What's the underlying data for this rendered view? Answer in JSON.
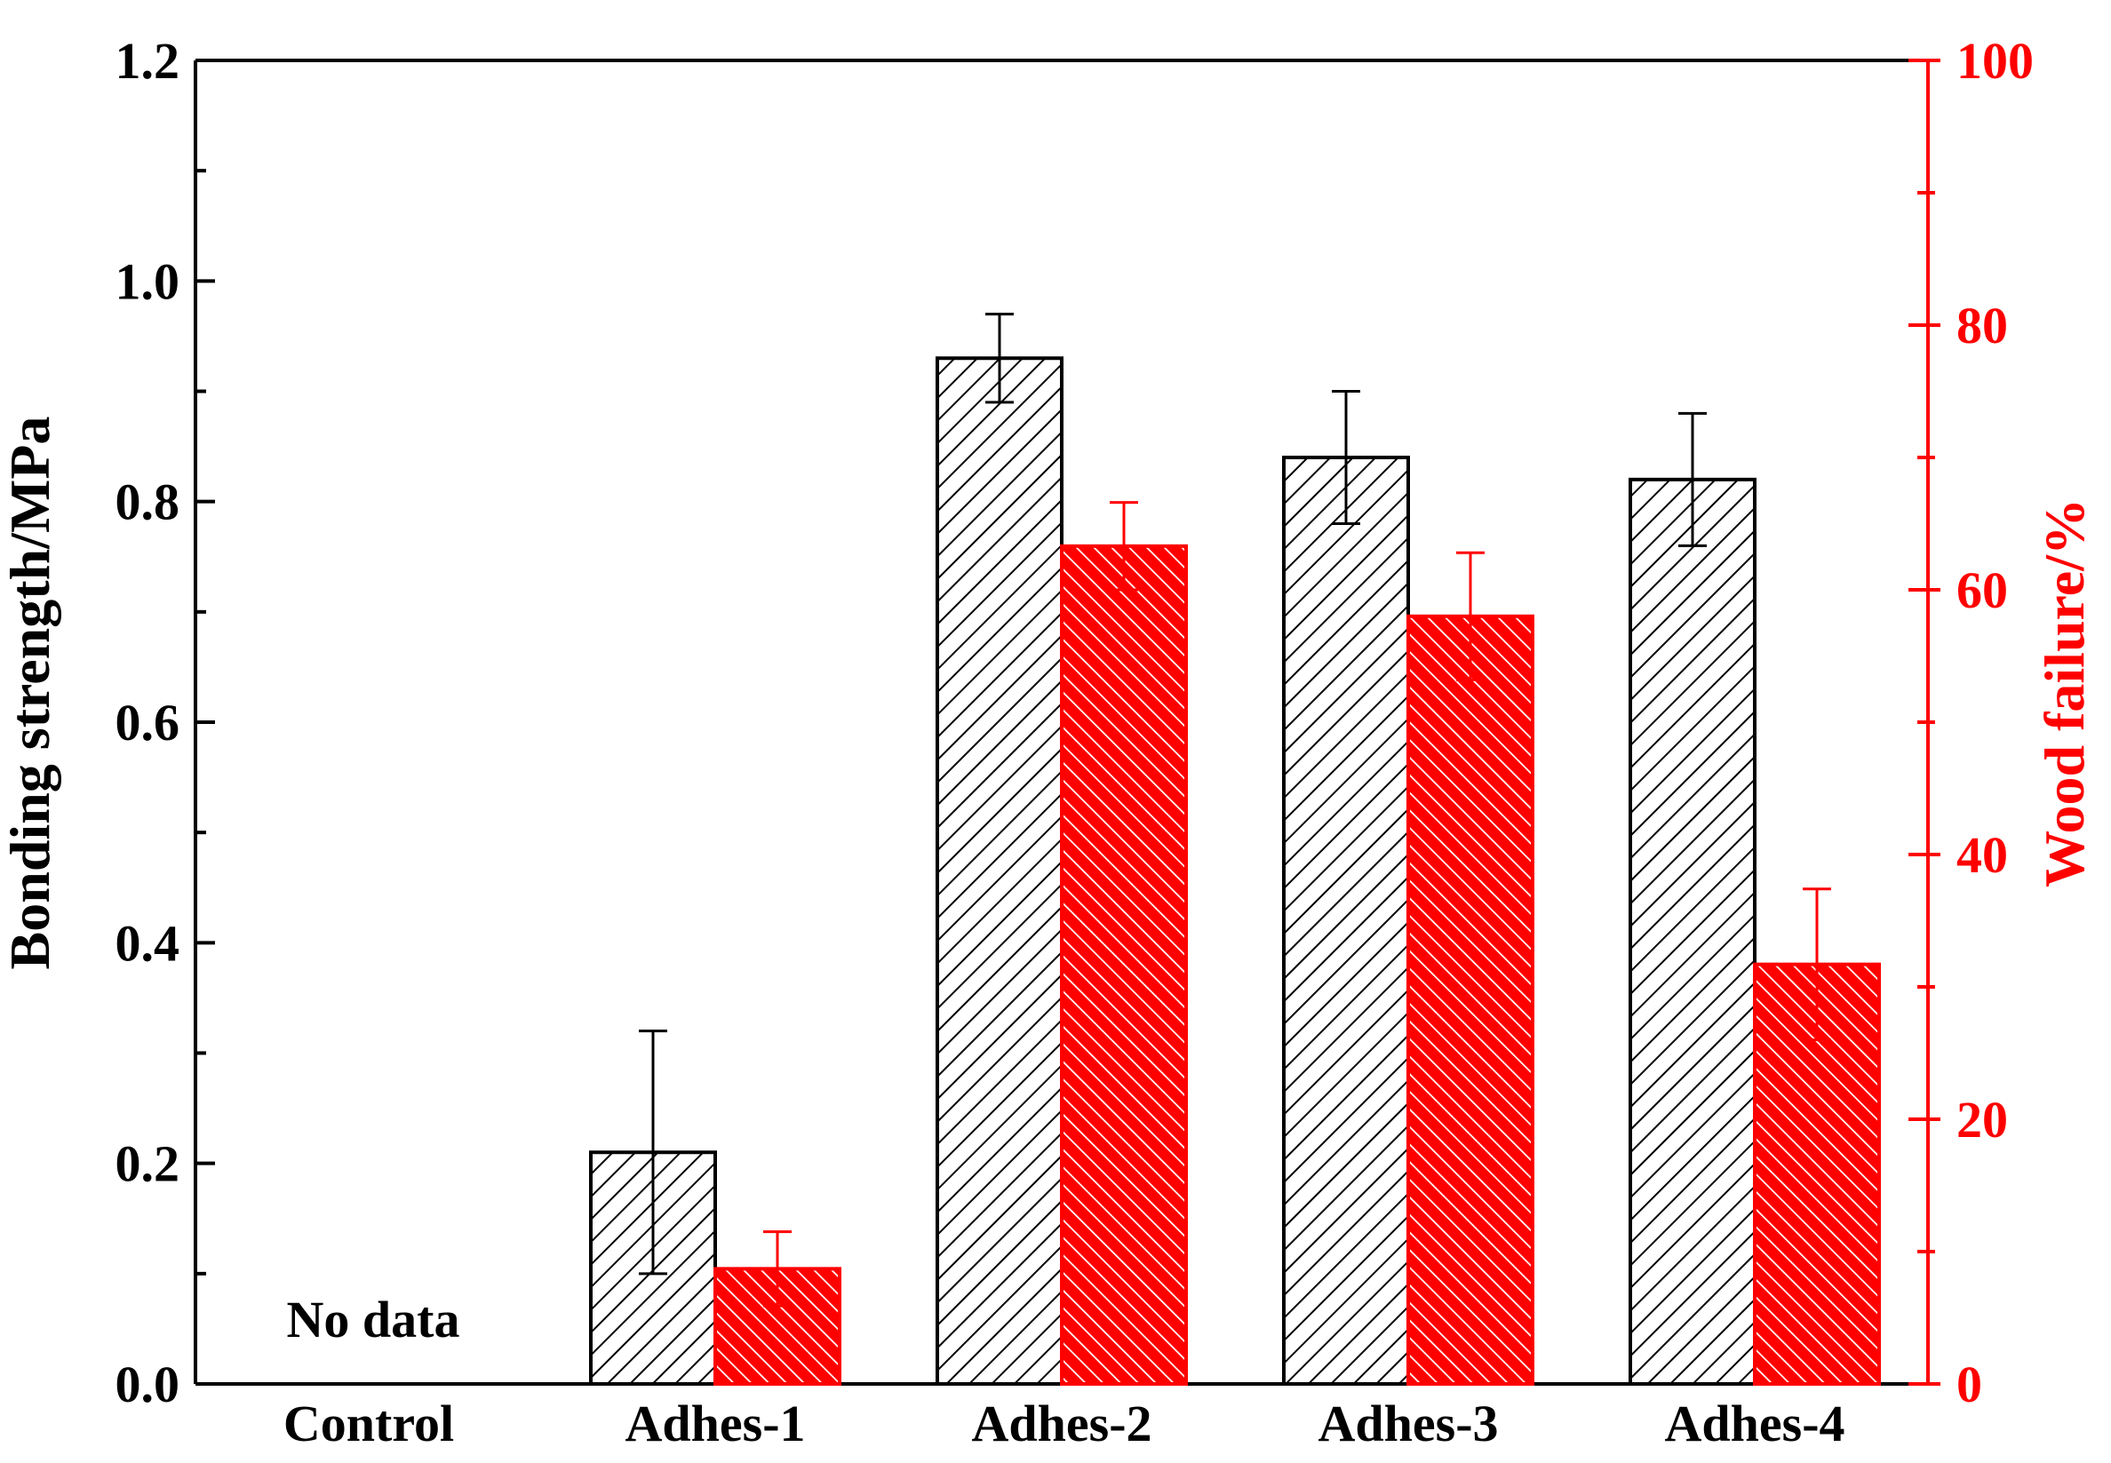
{
  "chart_data": {
    "type": "bar",
    "title": "",
    "categories": [
      "Control",
      "Adhes-1",
      "Adhes-2",
      "Adhes-3",
      "Adhes-4"
    ],
    "xlabel": "",
    "ylabel": "Bonding strength/MPa",
    "y2label": "Wood failure/%",
    "ylim": [
      0,
      1.2
    ],
    "y2lim": [
      0,
      100
    ],
    "yticks": [
      "0.0",
      "0.2",
      "0.4",
      "0.6",
      "0.8",
      "1.0",
      "1.2"
    ],
    "y2ticks": [
      "0",
      "20",
      "40",
      "60",
      "80",
      "100"
    ],
    "annotation": "No data",
    "series": [
      {
        "name": "Bonding strength",
        "axis": "left",
        "color": "#000000",
        "hatch": "forward-diagonal",
        "values": [
          null,
          0.21,
          0.93,
          0.84,
          0.82
        ],
        "errors": [
          null,
          0.11,
          0.04,
          0.06,
          0.06
        ]
      },
      {
        "name": "Wood failure",
        "axis": "right",
        "color": "#ff0000",
        "hatch": "back-diagonal",
        "values": [
          null,
          8.7,
          63.3,
          58.0,
          31.7
        ],
        "errors": [
          null,
          2.8,
          3.3,
          4.8,
          5.7
        ]
      }
    ],
    "grid": false,
    "legend": "none"
  }
}
